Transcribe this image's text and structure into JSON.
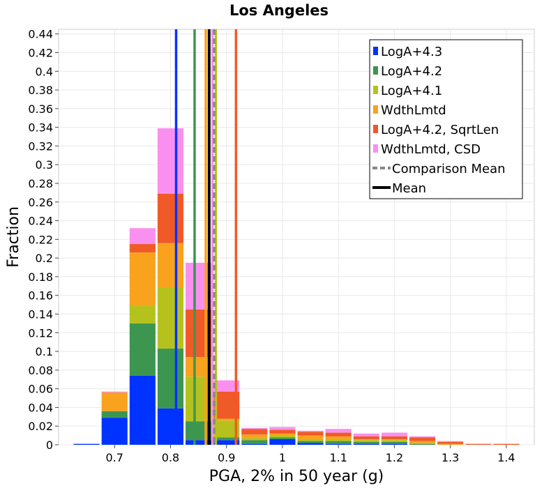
{
  "chart_data": {
    "type": "bar",
    "stacked": true,
    "title": "Los Angeles",
    "xlabel": "PGA, 2% in 50 year (g)",
    "ylabel": "Fraction",
    "xlim": [
      0.6,
      1.45
    ],
    "ylim": [
      0,
      0.445
    ],
    "grid": true,
    "legend_position": "top-right",
    "x_ticks": [
      "0.7",
      "0.8",
      "0.9",
      "1",
      "1.1",
      "1.2",
      "1.3",
      "1.4"
    ],
    "y_ticks": [
      "0",
      "0.02",
      "0.04",
      "0.06",
      "0.08",
      "0.1",
      "0.12",
      "0.14",
      "0.16",
      "0.18",
      "0.2",
      "0.22",
      "0.24",
      "0.26",
      "0.28",
      "0.3",
      "0.32",
      "0.34",
      "0.36",
      "0.38",
      "0.4",
      "0.42",
      "0.44"
    ],
    "bin_width": 0.1,
    "bin_centers": [
      0.65,
      0.7,
      0.75,
      0.8,
      0.85,
      0.9,
      0.95,
      1.0,
      1.05,
      1.1,
      1.15,
      1.2,
      1.25,
      1.3,
      1.35,
      1.4
    ],
    "series": [
      {
        "name": "LogA+4.3",
        "color": "#0033ff",
        "values": [
          0.001,
          0.029,
          0.074,
          0.039,
          0.005,
          0.005,
          0.001,
          0.006,
          0.002,
          0.001,
          0.001,
          0.001,
          0,
          0,
          0,
          0
        ]
      },
      {
        "name": "LogA+4.2",
        "color": "#3d9650",
        "values": [
          0,
          0.007,
          0.056,
          0.064,
          0.02,
          0.003,
          0.004,
          0.002,
          0.002,
          0.003,
          0.002,
          0.002,
          0.001,
          0,
          0,
          0
        ]
      },
      {
        "name": "LogA+4.1",
        "color": "#b5c21e",
        "values": [
          0,
          0,
          0.019,
          0.065,
          0.048,
          0.018,
          0.002,
          0.002,
          0.002,
          0.002,
          0.002,
          0.002,
          0.001,
          0,
          0,
          0
        ]
      },
      {
        "name": "WdthLmtd",
        "color": "#f8a21e",
        "values": [
          0,
          0.02,
          0.057,
          0.048,
          0.021,
          0.002,
          0.004,
          0.002,
          0.004,
          0.003,
          0.001,
          0.001,
          0.002,
          0.001,
          0,
          0
        ]
      },
      {
        "name": "LogA+4.2, SqrtLen",
        "color": "#f05a28",
        "values": [
          0,
          0,
          0.009,
          0.053,
          0.051,
          0.029,
          0.006,
          0.004,
          0.004,
          0.004,
          0.003,
          0.003,
          0.004,
          0.002,
          0.001,
          0.001
        ]
      },
      {
        "name": "WdthLmtd, CSD",
        "color": "#f990f0",
        "values": [
          0,
          0.001,
          0.017,
          0.07,
          0.05,
          0.012,
          0.001,
          0.003,
          0.001,
          0.004,
          0.003,
          0.004,
          0.001,
          0.001,
          0,
          0
        ]
      }
    ],
    "vertical_lines": [
      {
        "series": "LogA+4.3",
        "x": 0.81,
        "color": "#0033ff",
        "style": "solid"
      },
      {
        "series": "LogA+4.2",
        "x": 0.843,
        "color": "#3d9650",
        "style": "solid"
      },
      {
        "series": "LogA+4.1",
        "x": 0.881,
        "color": "#b5c21e",
        "style": "solid"
      },
      {
        "series": "WdthLmtd",
        "x": 0.863,
        "color": "#f8a21e",
        "style": "solid"
      },
      {
        "series": "LogA+4.2, SqrtLen",
        "x": 0.917,
        "color": "#f05a28",
        "style": "solid"
      },
      {
        "series": "WdthLmtd, CSD",
        "x": 0.875,
        "color": "#f990f0",
        "style": "solid"
      },
      {
        "series": "Comparison Mean",
        "x": 0.878,
        "color": "#888888",
        "style": "dashed"
      },
      {
        "series": "Mean",
        "x": 0.869,
        "color": "#000000",
        "style": "solid"
      }
    ],
    "legend": [
      {
        "label": "LogA+4.3",
        "color": "#0033ff",
        "kind": "box"
      },
      {
        "label": "LogA+4.2",
        "color": "#3d9650",
        "kind": "box"
      },
      {
        "label": "LogA+4.1",
        "color": "#b5c21e",
        "kind": "box"
      },
      {
        "label": "WdthLmtd",
        "color": "#f8a21e",
        "kind": "box"
      },
      {
        "label": "LogA+4.2, SqrtLen",
        "color": "#f05a28",
        "kind": "box"
      },
      {
        "label": "WdthLmtd, CSD",
        "color": "#f990f0",
        "kind": "box"
      },
      {
        "label": "Comparison Mean",
        "color": "#888888",
        "kind": "dashed"
      },
      {
        "label": "Mean",
        "color": "#000000",
        "kind": "line"
      }
    ]
  }
}
